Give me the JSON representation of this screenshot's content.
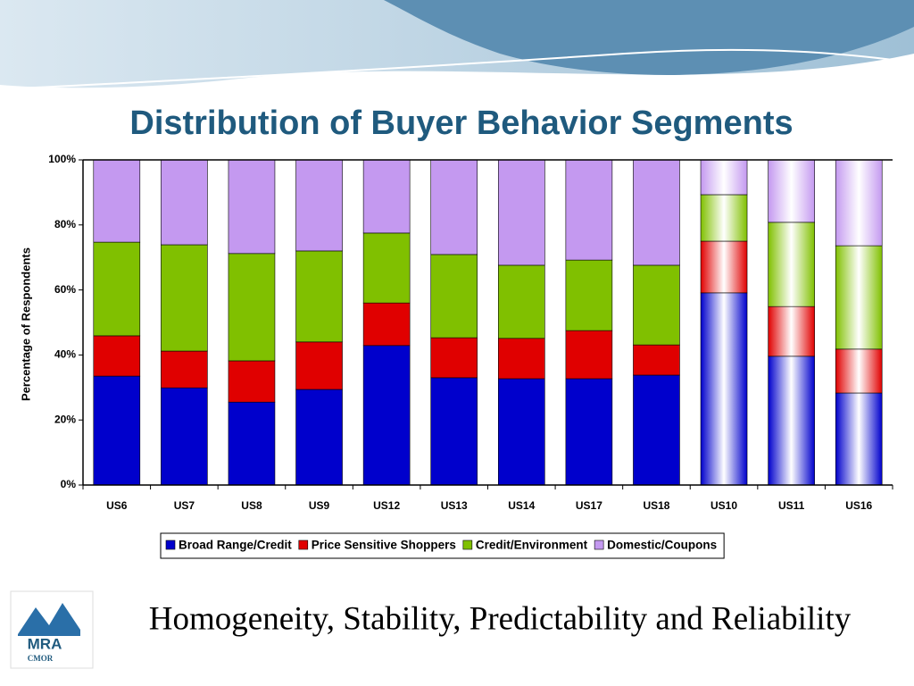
{
  "chart_data": {
    "type": "stacked_bar",
    "title": "Distribution of Buyer Behavior Segments",
    "ylabel": "Percentage of Respondents",
    "categories": [
      "US6",
      "US7",
      "US8",
      "US9",
      "US12",
      "US13",
      "US14",
      "US17",
      "US18",
      "US10",
      "US11",
      "US16"
    ],
    "fill_style": [
      "solid",
      "solid",
      "solid",
      "solid",
      "solid",
      "solid",
      "solid",
      "solid",
      "solid",
      "gradient",
      "gradient",
      "gradient"
    ],
    "series": [
      {
        "name": "Broad Range/Credit",
        "color": "#0000cc",
        "values": [
          33.5,
          29.9,
          25.5,
          29.4,
          42.9,
          33.0,
          32.7,
          32.7,
          33.8,
          59.1,
          39.6,
          28.3
        ]
      },
      {
        "name": "Price Sensitive Shoppers",
        "color": "#e00000",
        "values": [
          12.4,
          11.3,
          12.7,
          14.6,
          13.1,
          12.3,
          12.4,
          14.8,
          9.3,
          15.9,
          15.3,
          13.5
        ]
      },
      {
        "name": "Credit/Environment",
        "color": "#80c000",
        "values": [
          28.8,
          32.7,
          33.0,
          28.0,
          21.5,
          25.6,
          22.5,
          21.7,
          24.5,
          14.3,
          25.9,
          31.8
        ]
      },
      {
        "name": "Domestic/Coupons",
        "color": "#c499f0",
        "values": [
          25.3,
          26.1,
          28.8,
          28.0,
          22.5,
          29.1,
          32.4,
          30.8,
          32.4,
          10.7,
          19.2,
          26.4
        ]
      }
    ],
    "ylim": [
      0,
      100
    ],
    "yticks": [
      {
        "value": 0,
        "label": "0%"
      },
      {
        "value": 20,
        "label": "20%"
      },
      {
        "value": 40,
        "label": "40%"
      },
      {
        "value": 60,
        "label": "60%"
      },
      {
        "value": 80,
        "label": "80%"
      },
      {
        "value": 100,
        "label": "100%"
      }
    ],
    "legend": "bottom"
  },
  "footer": {
    "tagline": "Homogeneity, Stability, Predictability and Reliability",
    "logo": "MRA",
    "logo_sub": "CMOR"
  }
}
